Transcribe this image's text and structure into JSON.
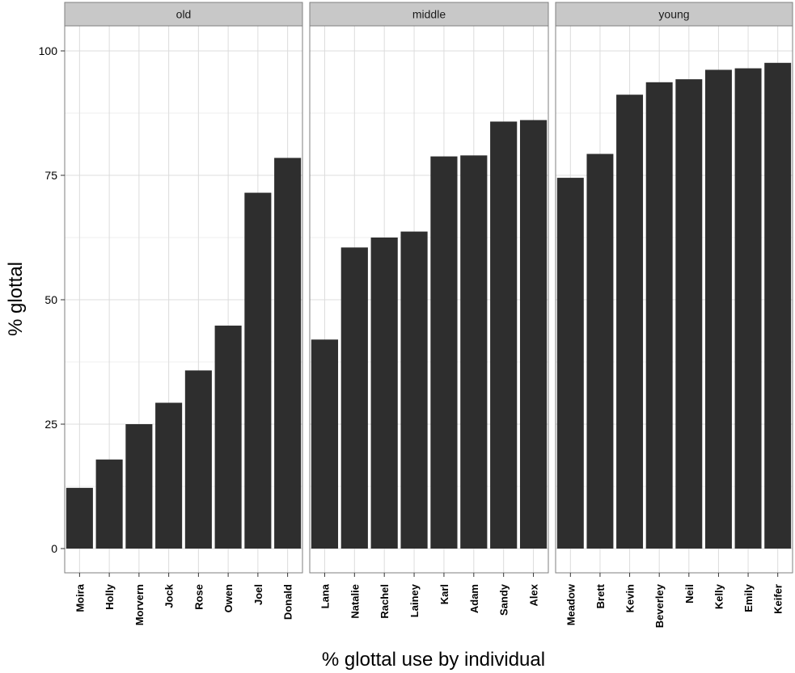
{
  "chart_data": {
    "type": "bar",
    "facet_strip_position": "top",
    "ylabel": "% glottal",
    "xlabel": "% glottal use by individual",
    "ylim": [
      0,
      105
    ],
    "yticks": [
      0,
      25,
      50,
      75,
      100
    ],
    "grid": true,
    "legend": "none",
    "colors": {
      "bar": "#2e2e2e",
      "panel_background": "#ffffff",
      "panel_border": "#7f7f7f",
      "strip_background": "#c8c8c8",
      "grid_major": "#dcdcdc",
      "grid_minor": "#efefef"
    },
    "facets": [
      {
        "label": "old",
        "categories": [
          "Moira",
          "Holly",
          "Morvern",
          "Jock",
          "Rose",
          "Owen",
          "Joel",
          "Donald"
        ],
        "values": [
          12.2,
          17.9,
          25.0,
          29.3,
          35.8,
          44.8,
          71.5,
          78.5
        ]
      },
      {
        "label": "middle",
        "categories": [
          "Lana",
          "Natalie",
          "Rachel",
          "Lainey",
          "Karl",
          "Adam",
          "Sandy",
          "Alex"
        ],
        "values": [
          42.0,
          60.5,
          62.5,
          63.7,
          78.8,
          79.0,
          85.8,
          86.1
        ]
      },
      {
        "label": "young",
        "categories": [
          "Meadow",
          "Brett",
          "Kevin",
          "Beverley",
          "Neil",
          "Kelly",
          "Emily",
          "Keifer"
        ],
        "values": [
          74.5,
          79.3,
          91.2,
          93.7,
          94.3,
          96.2,
          96.5,
          97.6
        ]
      }
    ]
  }
}
